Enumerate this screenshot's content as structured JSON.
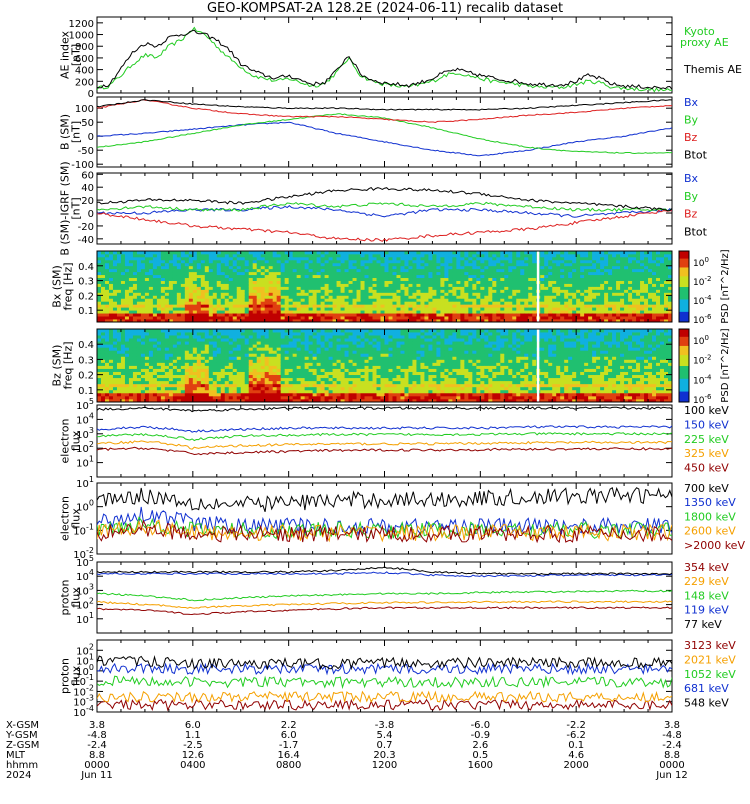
{
  "title": "GEO-KOMPSAT-2A 128.2E (2024-06-11) recalib dataset",
  "colors": {
    "black": "#000000",
    "green": "#22cc22",
    "blue": "#1030d0",
    "red": "#dd2020",
    "orange": "#f5a000",
    "darkred": "#900000",
    "kyoto": "#33dd33"
  },
  "time_ticks": [
    "0000",
    "0400",
    "0800",
    "1200",
    "1600",
    "2000",
    "0000"
  ],
  "orbit_footer": {
    "row_labels": [
      "X-GSM",
      "Y-GSM",
      "Z-GSM",
      "MLT",
      "hhmm",
      "2024"
    ],
    "columns": [
      [
        "3.8",
        "-4.8",
        "-2.4",
        "8.8",
        "0000",
        "Jun 11"
      ],
      [
        "6.0",
        "1.1",
        "-2.5",
        "12.6",
        "0400",
        ""
      ],
      [
        "2.2",
        "6.0",
        "-1.7",
        "16.4",
        "0800",
        ""
      ],
      [
        "-3.8",
        "5.4",
        "0.7",
        "20.3",
        "1200",
        ""
      ],
      [
        "-6.0",
        "-0.9",
        "2.6",
        "0.5",
        "1600",
        ""
      ],
      [
        "-2.2",
        "-6.2",
        "0.1",
        "4.6",
        "2000",
        ""
      ],
      [
        "3.8",
        "-4.8",
        "-2.4",
        "8.8",
        "0000",
        "Jun 12"
      ]
    ]
  },
  "chart_data": [
    {
      "type": "line",
      "panel": "AE index",
      "ylabel": "AE index [nT]",
      "ylim": [
        0,
        1300
      ],
      "yticks": [
        "0",
        "200",
        "400",
        "600",
        "800",
        "1000",
        "1200"
      ],
      "x_hours": [
        0,
        0.5,
        1,
        1.5,
        2,
        2.5,
        3,
        3.5,
        4,
        4.5,
        5,
        5.5,
        6,
        6.5,
        7,
        7.5,
        8,
        8.5,
        9,
        9.5,
        10,
        10.5,
        11,
        11.5,
        12,
        12.5,
        13,
        13.5,
        14,
        14.5,
        15,
        15.5,
        16,
        16.5,
        17,
        17.5,
        18,
        18.5,
        19,
        19.5,
        20,
        20.5,
        21,
        21.5,
        22,
        22.5,
        23,
        23.5,
        24
      ],
      "series": [
        {
          "name": "Kyoto proxy AE",
          "color_key": "green",
          "values": [
            80,
            120,
            300,
            500,
            650,
            600,
            800,
            900,
            1100,
            1000,
            800,
            600,
            450,
            300,
            250,
            200,
            250,
            180,
            120,
            160,
            350,
            600,
            300,
            200,
            150,
            120,
            100,
            150,
            200,
            300,
            350,
            300,
            250,
            200,
            180,
            150,
            120,
            100,
            100,
            100,
            150,
            200,
            180,
            100,
            80,
            70,
            60,
            50,
            40
          ]
        },
        {
          "name": "Themis AE",
          "color_key": "black",
          "values": [
            100,
            150,
            420,
            700,
            850,
            800,
            950,
            1000,
            1050,
            1000,
            900,
            750,
            500,
            380,
            300,
            250,
            300,
            220,
            150,
            180,
            380,
            650,
            320,
            220,
            170,
            150,
            130,
            180,
            250,
            350,
            400,
            350,
            300,
            260,
            220,
            200,
            160,
            150,
            140,
            150,
            200,
            300,
            250,
            150,
            120,
            110,
            100,
            90,
            80
          ]
        }
      ]
    },
    {
      "type": "line",
      "panel": "B (SM)",
      "ylabel": "B (SM) [nT]",
      "ylim": [
        -110,
        140
      ],
      "yticks": [
        "-100",
        "-50",
        "0",
        "50",
        "100"
      ],
      "x_hours": [
        0,
        2,
        4,
        6,
        8,
        10,
        12,
        14,
        16,
        18,
        20,
        22,
        24
      ],
      "series": [
        {
          "name": "Bx",
          "color_key": "blue",
          "values": [
            0,
            10,
            25,
            40,
            50,
            10,
            -20,
            -50,
            -70,
            -50,
            -20,
            0,
            30
          ]
        },
        {
          "name": "By",
          "color_key": "green",
          "values": [
            -40,
            -20,
            10,
            40,
            60,
            80,
            65,
            30,
            -10,
            -40,
            -55,
            -60,
            -60
          ]
        },
        {
          "name": "Bz",
          "color_key": "red",
          "values": [
            100,
            130,
            100,
            80,
            70,
            70,
            60,
            50,
            60,
            75,
            85,
            100,
            110
          ]
        },
        {
          "name": "Btot",
          "color_key": "black",
          "values": [
            105,
            130,
            115,
            105,
            100,
            100,
            95,
            95,
            95,
            100,
            110,
            120,
            130
          ]
        }
      ]
    },
    {
      "type": "line",
      "panel": "B (SM)-IGRF (SM)",
      "ylabel": "B (SM)-IGRF (SM) [nT]",
      "ylim": [
        -48,
        62
      ],
      "yticks": [
        "-40",
        "-20",
        "0",
        "20",
        "40",
        "60"
      ],
      "x_hours": [
        0,
        2,
        4,
        6,
        8,
        10,
        12,
        14,
        16,
        18,
        20,
        22,
        24
      ],
      "series": [
        {
          "name": "Bx",
          "color_key": "blue",
          "values": [
            0,
            0,
            5,
            5,
            10,
            5,
            -5,
            5,
            5,
            0,
            -5,
            0,
            5
          ]
        },
        {
          "name": "By",
          "color_key": "green",
          "values": [
            5,
            10,
            5,
            5,
            15,
            10,
            15,
            10,
            15,
            10,
            5,
            5,
            5
          ]
        },
        {
          "name": "Bz",
          "color_key": "red",
          "values": [
            0,
            -10,
            -20,
            -25,
            -30,
            -40,
            -42,
            -35,
            -30,
            -25,
            -15,
            -5,
            5
          ]
        },
        {
          "name": "Btot",
          "color_key": "black",
          "values": [
            15,
            20,
            20,
            15,
            25,
            35,
            38,
            35,
            30,
            20,
            15,
            10,
            5
          ]
        }
      ]
    },
    {
      "type": "heatmap",
      "panel": "Bx (SM)",
      "ylabel": "Bx (SM) freq [Hz]",
      "ylim": [
        0.02,
        0.5
      ],
      "yticks": [
        "0.1",
        "0.2",
        "0.3",
        "0.4"
      ],
      "colorbar_label": "PSD [nT^2/Hz]",
      "colorbar_ticks": [
        "10^0",
        "10^-2",
        "10^-4",
        "10^-6"
      ]
    },
    {
      "type": "heatmap",
      "panel": "Bz (SM)",
      "ylabel": "Bz (SM) freq [Hz]",
      "ylim": [
        0.02,
        0.5
      ],
      "yticks": [
        "0.1",
        "0.2",
        "0.3",
        "0.4"
      ],
      "colorbar_label": "PSD [nT^2/Hz]",
      "colorbar_ticks": [
        "10^0",
        "10^-2",
        "10^-4",
        "10^-6"
      ]
    },
    {
      "type": "line",
      "panel": "electron flux low",
      "ylabel": "electron flux",
      "scale": "log",
      "ylim": [
        1,
        100000
      ],
      "yticks": [
        "10^1",
        "10^2",
        "10^3",
        "10^4",
        "10^5"
      ],
      "x_hours": [
        0,
        2,
        4,
        6,
        8,
        10,
        12,
        14,
        16,
        18,
        20,
        22,
        24
      ],
      "series": [
        {
          "name": "100 keV",
          "color_key": "black",
          "values": [
            50000,
            60000,
            40000,
            50000,
            60000,
            60000,
            60000,
            60000,
            60000,
            60000,
            60000,
            60000,
            60000
          ]
        },
        {
          "name": "150 keV",
          "color_key": "blue",
          "values": [
            2000,
            3000,
            1500,
            2000,
            2500,
            2500,
            2500,
            2500,
            2500,
            3000,
            3000,
            3000,
            3000
          ]
        },
        {
          "name": "225 keV",
          "color_key": "green",
          "values": [
            700,
            900,
            400,
            700,
            800,
            900,
            900,
            900,
            900,
            1000,
            1000,
            1000,
            1000
          ]
        },
        {
          "name": "325 keV",
          "color_key": "orange",
          "values": [
            200,
            300,
            100,
            150,
            180,
            200,
            200,
            200,
            220,
            240,
            250,
            250,
            250
          ]
        },
        {
          "name": "450 keV",
          "color_key": "darkred",
          "values": [
            80,
            100,
            40,
            50,
            60,
            70,
            75,
            75,
            80,
            85,
            90,
            90,
            90
          ]
        }
      ]
    },
    {
      "type": "line",
      "panel": "electron flux high",
      "ylabel": "electron flux",
      "scale": "log",
      "ylim": [
        0.01,
        10
      ],
      "yticks": [
        "10^-2",
        "10^-1",
        "10^0",
        "10^1"
      ],
      "x_hours": [
        0,
        2,
        4,
        6,
        8,
        10,
        12,
        14,
        16,
        18,
        20,
        22,
        24
      ],
      "series": [
        {
          "name": "700 keV",
          "color_key": "black",
          "values": [
            2,
            3,
            1.5,
            1.2,
            1.5,
            1.8,
            2,
            2,
            2.2,
            2.5,
            2.8,
            3,
            3
          ]
        },
        {
          "name": "1350 keV",
          "color_key": "blue",
          "values": [
            0.2,
            0.5,
            0.2,
            0.15,
            0.15,
            0.15,
            0.15,
            0.15,
            0.15,
            0.15,
            0.15,
            0.15,
            0.15
          ]
        },
        {
          "name": "1800 keV",
          "color_key": "green",
          "values": [
            0.1,
            0.2,
            0.1,
            0.1,
            0.1,
            0.1,
            0.1,
            0.1,
            0.1,
            0.1,
            0.1,
            0.1,
            0.1
          ]
        },
        {
          "name": "2600 keV",
          "color_key": "orange",
          "values": [
            0.08,
            0.15,
            0.08,
            0.08,
            0.08,
            0.08,
            0.08,
            0.08,
            0.08,
            0.08,
            0.08,
            0.08,
            0.08
          ]
        },
        {
          "name": ">2000 keV",
          "color_key": "darkred",
          "values": [
            0.07,
            0.12,
            0.07,
            0.07,
            0.07,
            0.07,
            0.07,
            0.07,
            0.07,
            0.07,
            0.07,
            0.07,
            0.07
          ]
        }
      ]
    },
    {
      "type": "line",
      "panel": "proton flux low",
      "ylabel": "proton flux",
      "scale": "log",
      "ylim": [
        1,
        100000
      ],
      "yticks": [
        "10^1",
        "10^2",
        "10^3",
        "10^4",
        "10^5"
      ],
      "x_hours": [
        0,
        2,
        4,
        6,
        8,
        10,
        12,
        14,
        16,
        18,
        20,
        22,
        24
      ],
      "series": [
        {
          "name": "354 keV",
          "color_key": "darkred",
          "values": [
            50,
            40,
            20,
            30,
            40,
            50,
            60,
            60,
            60,
            60,
            60,
            60,
            60
          ]
        },
        {
          "name": "229 keV",
          "color_key": "orange",
          "values": [
            150,
            100,
            60,
            80,
            100,
            120,
            140,
            140,
            150,
            160,
            160,
            160,
            160
          ]
        },
        {
          "name": "148 keV",
          "color_key": "green",
          "values": [
            600,
            400,
            200,
            300,
            400,
            500,
            600,
            600,
            700,
            800,
            800,
            900,
            900
          ]
        },
        {
          "name": "119 keV",
          "color_key": "blue",
          "values": [
            15000,
            15000,
            15000,
            15000,
            15000,
            15000,
            18000,
            12000,
            10000,
            11000,
            12000,
            12000,
            12000
          ]
        },
        {
          "name": "77 keV",
          "color_key": "black",
          "values": [
            20000,
            20000,
            20000,
            20000,
            20000,
            25000,
            40000,
            20000,
            15000,
            15000,
            15000,
            15000,
            15000
          ]
        }
      ]
    },
    {
      "type": "line",
      "panel": "proton flux high",
      "ylabel": "proton flux",
      "scale": "log",
      "ylim": [
        0.0001,
        1000
      ],
      "yticks": [
        "10^-4",
        "10^-3",
        "10^-2",
        "10^-1",
        "10^0",
        "10^1",
        "10^2"
      ],
      "x_hours": [
        0,
        2,
        4,
        6,
        8,
        10,
        12,
        14,
        16,
        18,
        20,
        22,
        24
      ],
      "series": [
        {
          "name": "3123 keV",
          "color_key": "darkred",
          "values": [
            0.0005,
            0.0005,
            0.0005,
            0.0005,
            0.0005,
            0.0005,
            0.0005,
            0.0005,
            0.0005,
            0.0005,
            0.0005,
            0.0005,
            0.0005
          ]
        },
        {
          "name": "2021 keV",
          "color_key": "orange",
          "values": [
            0.003,
            0.003,
            0.003,
            0.003,
            0.003,
            0.003,
            0.003,
            0.003,
            0.003,
            0.003,
            0.003,
            0.003,
            0.003
          ]
        },
        {
          "name": "1052 keV",
          "color_key": "green",
          "values": [
            0.1,
            0.1,
            0.08,
            0.08,
            0.08,
            0.08,
            0.08,
            0.08,
            0.08,
            0.08,
            0.08,
            0.08,
            0.08
          ]
        },
        {
          "name": "681 keV",
          "color_key": "blue",
          "values": [
            2,
            2,
            1.5,
            1.5,
            1.5,
            1.5,
            1.5,
            1.5,
            1.5,
            1.5,
            1.5,
            1.5,
            1.5
          ]
        },
        {
          "name": "548 keV",
          "color_key": "black",
          "values": [
            10,
            8,
            5,
            5,
            5,
            5,
            6,
            6,
            6,
            6,
            6,
            6,
            6
          ]
        }
      ]
    }
  ]
}
